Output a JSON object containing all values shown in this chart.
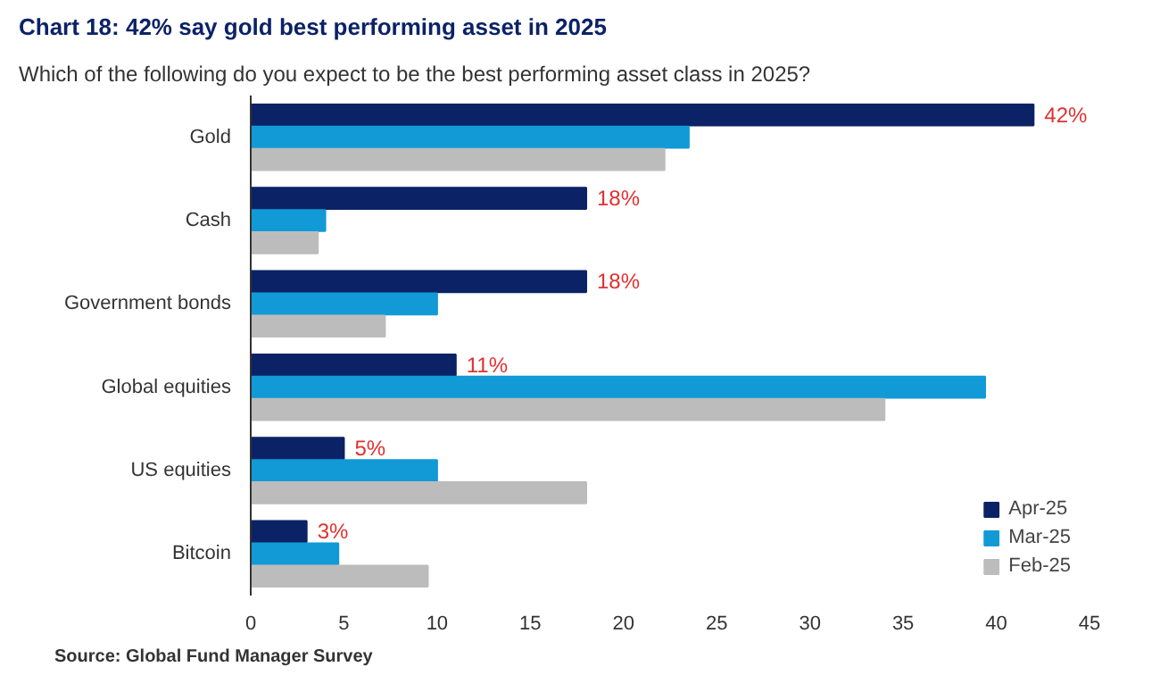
{
  "chart_data": {
    "type": "bar",
    "orientation": "horizontal",
    "title": "Chart 18: 42% say gold best performing asset in 2025",
    "subtitle": "Which of the following do you expect to be the best performing asset class in 2025?",
    "categories": [
      "Gold",
      "Cash",
      "Government bonds",
      "Global equities",
      "US equities",
      "Bitcoin"
    ],
    "series": [
      {
        "name": "Apr-25",
        "color": "#0b2266",
        "values": [
          42,
          18,
          18,
          11,
          5,
          3
        ],
        "value_labels": [
          "42%",
          "18%",
          "18%",
          "11%",
          "5%",
          "3%"
        ]
      },
      {
        "name": "Mar-25",
        "color": "#119ad6",
        "values": [
          23.5,
          4,
          10,
          39.4,
          10,
          4.7
        ]
      },
      {
        "name": "Feb-25",
        "color": "#bcbcbc",
        "values": [
          22.2,
          3.6,
          7.2,
          34,
          18,
          9.5
        ]
      }
    ],
    "xlim": [
      0,
      45
    ],
    "xticks": [
      0,
      5,
      10,
      15,
      20,
      25,
      30,
      35,
      40,
      45
    ],
    "grid": false,
    "legend": "bottom right",
    "annotations": [
      "Source: Global Fund Manager Survey"
    ]
  }
}
